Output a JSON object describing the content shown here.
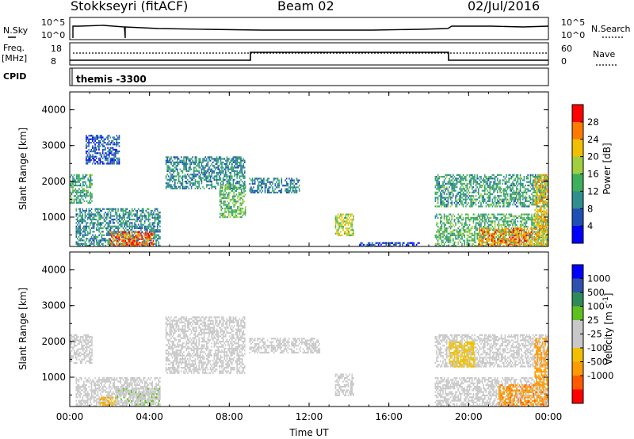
{
  "header": {
    "station": "Stokkseyri (fitACF)",
    "beam": "Beam 02",
    "date": "02/Jul/2016"
  },
  "top_panel_labels": {
    "nsky": "N.Sky",
    "nsearch": "N.Search",
    "freq_line1": "Freq.",
    "freq_line2": "[MHz]",
    "nave": "Nave",
    "cpid": "CPID",
    "cpid_value": "themis -3300",
    "noise_ticks_left": [
      "10^5",
      "10^0"
    ],
    "noise_ticks_right": [
      "10^5",
      "10^0"
    ],
    "freq_ticks_left": [
      "18",
      "8"
    ],
    "nave_ticks_right": [
      "60",
      "0"
    ]
  },
  "colors": {
    "power_scale": [
      "#0000ff",
      "#1f4fb4",
      "#2f8e8e",
      "#3cb05a",
      "#a0d040",
      "#f0c000",
      "#ff7a00",
      "#ff0000"
    ],
    "velocity_scale": [
      "#ff0000",
      "#ff5a00",
      "#ff9a00",
      "#f0c000",
      "#c8c8c8",
      "#c8c8c8",
      "#60c020",
      "#2e8b57",
      "#3050b0",
      "#0000ff"
    ],
    "ground_scatter": "#c8c8c8"
  },
  "chart_data": [
    {
      "type": "heatmap",
      "title": "Power",
      "xlabel": "",
      "ylabel": "Slant Range [km]",
      "x_ticks": [
        "00:00",
        "04:00",
        "08:00",
        "12:00",
        "16:00",
        "20:00",
        "00:00"
      ],
      "y_ticks": [
        1000,
        2000,
        3000,
        4000
      ],
      "xlim": [
        0,
        24
      ],
      "ylim": [
        180,
        4500
      ],
      "colorbar": {
        "label": "Power [dB]",
        "ticks": [
          4,
          8,
          12,
          16,
          20,
          24,
          28
        ],
        "range": [
          0,
          32
        ]
      },
      "regions": [
        {
          "x": [
            0.0,
            1.1
          ],
          "y": [
            1400,
            2200
          ],
          "value": 12
        },
        {
          "x": [
            0.8,
            2.5
          ],
          "y": [
            2500,
            3300
          ],
          "value": 6
        },
        {
          "x": [
            0.3,
            4.5
          ],
          "y": [
            200,
            1250
          ],
          "value": 10
        },
        {
          "x": [
            2.0,
            4.2
          ],
          "y": [
            200,
            600
          ],
          "value": 27
        },
        {
          "x": [
            4.8,
            8.8
          ],
          "y": [
            1800,
            2700
          ],
          "value": 10
        },
        {
          "x": [
            7.5,
            8.8
          ],
          "y": [
            1000,
            1900
          ],
          "value": 15
        },
        {
          "x": [
            9.0,
            11.5
          ],
          "y": [
            1700,
            2100
          ],
          "value": 9
        },
        {
          "x": [
            13.3,
            14.2
          ],
          "y": [
            500,
            1100
          ],
          "value": 19
        },
        {
          "x": [
            14.5,
            17.5
          ],
          "y": [
            180,
            300
          ],
          "value": 4
        },
        {
          "x": [
            18.3,
            24.0
          ],
          "y": [
            1300,
            2200
          ],
          "value": 12
        },
        {
          "x": [
            18.3,
            24.0
          ],
          "y": [
            200,
            1100
          ],
          "value": 14
        },
        {
          "x": [
            20.5,
            23.2
          ],
          "y": [
            200,
            700
          ],
          "value": 25
        },
        {
          "x": [
            23.3,
            24.0
          ],
          "y": [
            200,
            2200
          ],
          "value": 22
        }
      ]
    },
    {
      "type": "heatmap",
      "title": "Velocity",
      "xlabel": "Time UT",
      "ylabel": "Slant Range [km]",
      "x_ticks": [
        "00:00",
        "04:00",
        "08:00",
        "12:00",
        "16:00",
        "20:00",
        "00:00"
      ],
      "y_ticks": [
        1000,
        2000,
        3000,
        4000
      ],
      "xlim": [
        0,
        24
      ],
      "ylim": [
        180,
        4500
      ],
      "colorbar": {
        "label": "Velocity [m s^-1]",
        "ticks": [
          -1000,
          -500,
          -100,
          -25,
          25,
          100,
          500,
          1000
        ]
      },
      "regions": [
        {
          "x": [
            0.0,
            1.1
          ],
          "y": [
            1400,
            2200
          ],
          "value": 0,
          "ground_scatter": true
        },
        {
          "x": [
            0.3,
            4.5
          ],
          "y": [
            200,
            1000
          ],
          "value": 0,
          "ground_scatter": true
        },
        {
          "x": [
            1.5,
            2.3
          ],
          "y": [
            250,
            450
          ],
          "value": -90
        },
        {
          "x": [
            2.3,
            4.5
          ],
          "y": [
            200,
            700
          ],
          "value": 80
        },
        {
          "x": [
            4.8,
            8.8
          ],
          "y": [
            1100,
            2700
          ],
          "value": 0,
          "ground_scatter": true
        },
        {
          "x": [
            9.0,
            12.5
          ],
          "y": [
            1700,
            2100
          ],
          "value": 0,
          "ground_scatter": true
        },
        {
          "x": [
            13.3,
            14.2
          ],
          "y": [
            500,
            1100
          ],
          "value": 0,
          "ground_scatter": true
        },
        {
          "x": [
            18.3,
            24.0
          ],
          "y": [
            1300,
            2200
          ],
          "value": 0,
          "ground_scatter": true
        },
        {
          "x": [
            19.0,
            20.3
          ],
          "y": [
            1300,
            2000
          ],
          "value": -70
        },
        {
          "x": [
            18.3,
            24.0
          ],
          "y": [
            200,
            1000
          ],
          "value": 0,
          "ground_scatter": true
        },
        {
          "x": [
            21.5,
            24.0
          ],
          "y": [
            200,
            800
          ],
          "value": -400
        },
        {
          "x": [
            23.3,
            24.0
          ],
          "y": [
            800,
            2100
          ],
          "value": -300
        }
      ]
    }
  ]
}
